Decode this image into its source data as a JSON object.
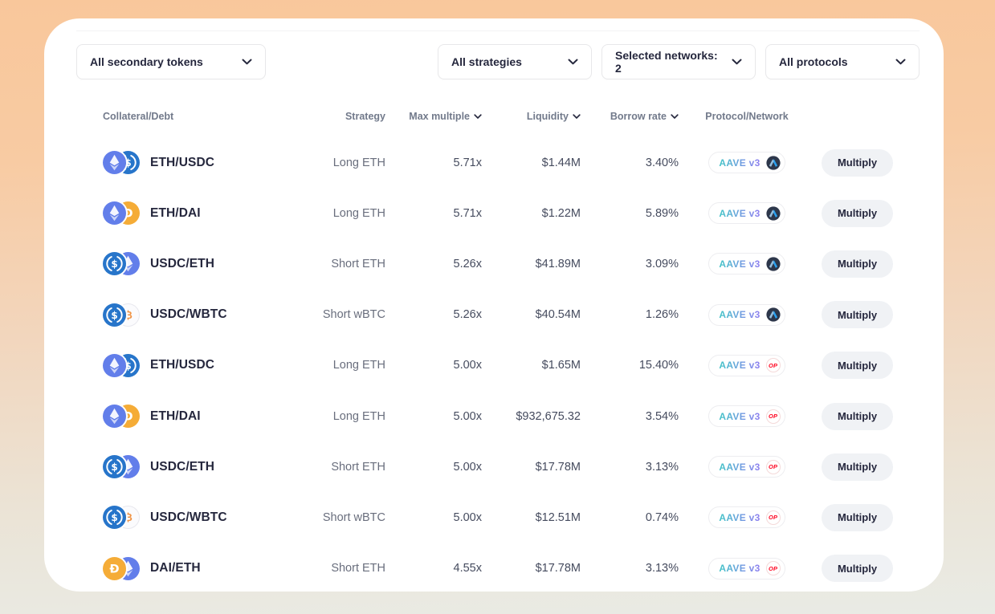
{
  "filters": {
    "secondary_tokens": {
      "label": "All secondary tokens"
    },
    "strategies": {
      "label": "All strategies"
    },
    "networks": {
      "label": "Selected networks: 2"
    },
    "protocols": {
      "label": "All protocols"
    }
  },
  "table": {
    "columns": [
      {
        "key": "pair",
        "label": "Collateral/Debt",
        "sortable": false
      },
      {
        "key": "strategy",
        "label": "Strategy",
        "sortable": false
      },
      {
        "key": "max_multiple",
        "label": "Max multiple",
        "sortable": true
      },
      {
        "key": "liquidity",
        "label": "Liquidity",
        "sortable": true
      },
      {
        "key": "borrow_rate",
        "label": "Borrow rate",
        "sortable": true
      },
      {
        "key": "protocol",
        "label": "Protocol/Network",
        "sortable": false
      }
    ],
    "action_label": "Multiply",
    "rows": [
      {
        "pair": "ETH/USDC",
        "tokens": [
          "ETH",
          "USDC"
        ],
        "strategy": "Long ETH",
        "max_multiple": "5.71x",
        "liquidity": "$1.44M",
        "borrow_rate": "3.40%",
        "protocol": "AAVE v3",
        "network": "arbitrum"
      },
      {
        "pair": "ETH/DAI",
        "tokens": [
          "ETH",
          "DAI"
        ],
        "strategy": "Long ETH",
        "max_multiple": "5.71x",
        "liquidity": "$1.22M",
        "borrow_rate": "5.89%",
        "protocol": "AAVE v3",
        "network": "arbitrum"
      },
      {
        "pair": "USDC/ETH",
        "tokens": [
          "USDC",
          "ETH"
        ],
        "strategy": "Short ETH",
        "max_multiple": "5.26x",
        "liquidity": "$41.89M",
        "borrow_rate": "3.09%",
        "protocol": "AAVE v3",
        "network": "arbitrum"
      },
      {
        "pair": "USDC/WBTC",
        "tokens": [
          "USDC",
          "WBTC"
        ],
        "strategy": "Short wBTC",
        "max_multiple": "5.26x",
        "liquidity": "$40.54M",
        "borrow_rate": "1.26%",
        "protocol": "AAVE v3",
        "network": "arbitrum"
      },
      {
        "pair": "ETH/USDC",
        "tokens": [
          "ETH",
          "USDC"
        ],
        "strategy": "Long ETH",
        "max_multiple": "5.00x",
        "liquidity": "$1.65M",
        "borrow_rate": "15.40%",
        "protocol": "AAVE v3",
        "network": "optimism"
      },
      {
        "pair": "ETH/DAI",
        "tokens": [
          "ETH",
          "DAI"
        ],
        "strategy": "Long ETH",
        "max_multiple": "5.00x",
        "liquidity": "$932,675.32",
        "borrow_rate": "3.54%",
        "protocol": "AAVE v3",
        "network": "optimism"
      },
      {
        "pair": "USDC/ETH",
        "tokens": [
          "USDC",
          "ETH"
        ],
        "strategy": "Short ETH",
        "max_multiple": "5.00x",
        "liquidity": "$17.78M",
        "borrow_rate": "3.13%",
        "protocol": "AAVE v3",
        "network": "optimism"
      },
      {
        "pair": "USDC/WBTC",
        "tokens": [
          "USDC",
          "WBTC"
        ],
        "strategy": "Short wBTC",
        "max_multiple": "5.00x",
        "liquidity": "$12.51M",
        "borrow_rate": "0.74%",
        "protocol": "AAVE v3",
        "network": "optimism"
      },
      {
        "pair": "DAI/ETH",
        "tokens": [
          "DAI",
          "ETH"
        ],
        "strategy": "Short ETH",
        "max_multiple": "4.55x",
        "liquidity": "$17.78M",
        "borrow_rate": "3.13%",
        "protocol": "AAVE v3",
        "network": "optimism"
      }
    ]
  },
  "icons": {
    "optimism_label": "OP"
  },
  "colors": {
    "navy_text": "#25273d",
    "gray_text": "#696e7d",
    "header_text": "#727a8b",
    "aave_gradient_start": "#40c4c6",
    "aave_gradient_end": "#8f7ef0",
    "optimism_red": "#ff0420",
    "arbitrum_navy": "#2d374b",
    "eth_blue": "#627eea",
    "usdc_blue": "#2775ca",
    "dai_gold": "#f5ac37",
    "wbtc_orange": "#f09242",
    "bg_peach": "#f9c79b",
    "bg_bottom": "#e9ebe5"
  }
}
